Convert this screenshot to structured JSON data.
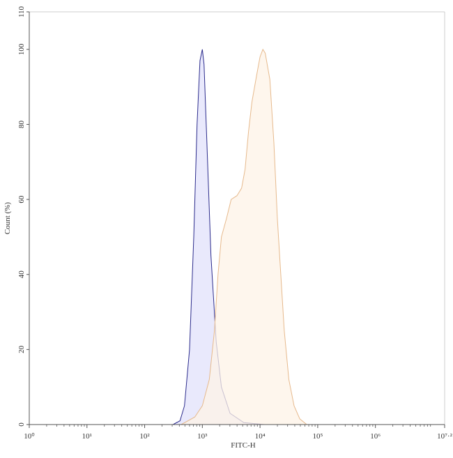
{
  "chart_data": {
    "type": "area",
    "xlabel": "FITC-H",
    "ylabel": "Count (%)",
    "xscale": "log",
    "xlim": [
      1,
      15848931.92
    ],
    "ylim": [
      0,
      110
    ],
    "xticks": [
      {
        "value": 1,
        "label": "10⁰"
      },
      {
        "value": 10,
        "label": "10¹"
      },
      {
        "value": 100,
        "label": "10²"
      },
      {
        "value": 1000,
        "label": "10³"
      },
      {
        "value": 10000,
        "label": "10⁴"
      },
      {
        "value": 100000,
        "label": "10⁵"
      },
      {
        "value": 1000000,
        "label": "10⁶"
      },
      {
        "value": 15848931.92,
        "label": "10⁷·²"
      }
    ],
    "yticks": [
      0,
      20,
      40,
      60,
      80,
      100,
      110
    ],
    "series": [
      {
        "color": "#2b2b8c",
        "fill": "#e2e2fb",
        "x": [
          310,
          410,
          490,
          600,
          710,
          810,
          910,
          1000,
          1070,
          1200,
          1410,
          1740,
          2140,
          3020,
          5250,
          12000
        ],
        "values": [
          0,
          1,
          5,
          20,
          50,
          80,
          97,
          100,
          96,
          75,
          45,
          22,
          10,
          3,
          0.5,
          0
        ]
      },
      {
        "color": "#e6b98c",
        "fill": "#fdf3e7",
        "x": [
          430,
          740,
          1000,
          1320,
          1620,
          1870,
          2140,
          2630,
          3160,
          3980,
          4790,
          5500,
          6310,
          7240,
          8710,
          10000,
          11200,
          12300,
          14800,
          17400,
          19950,
          22900,
          26300,
          31600,
          38900,
          48900,
          64600
        ],
        "values": [
          0,
          2,
          5,
          12,
          25,
          40,
          50,
          55,
          60,
          61,
          63,
          68,
          78,
          86,
          93,
          98,
          100,
          99,
          92,
          75,
          55,
          40,
          25,
          12,
          5,
          1.5,
          0
        ]
      }
    ]
  }
}
